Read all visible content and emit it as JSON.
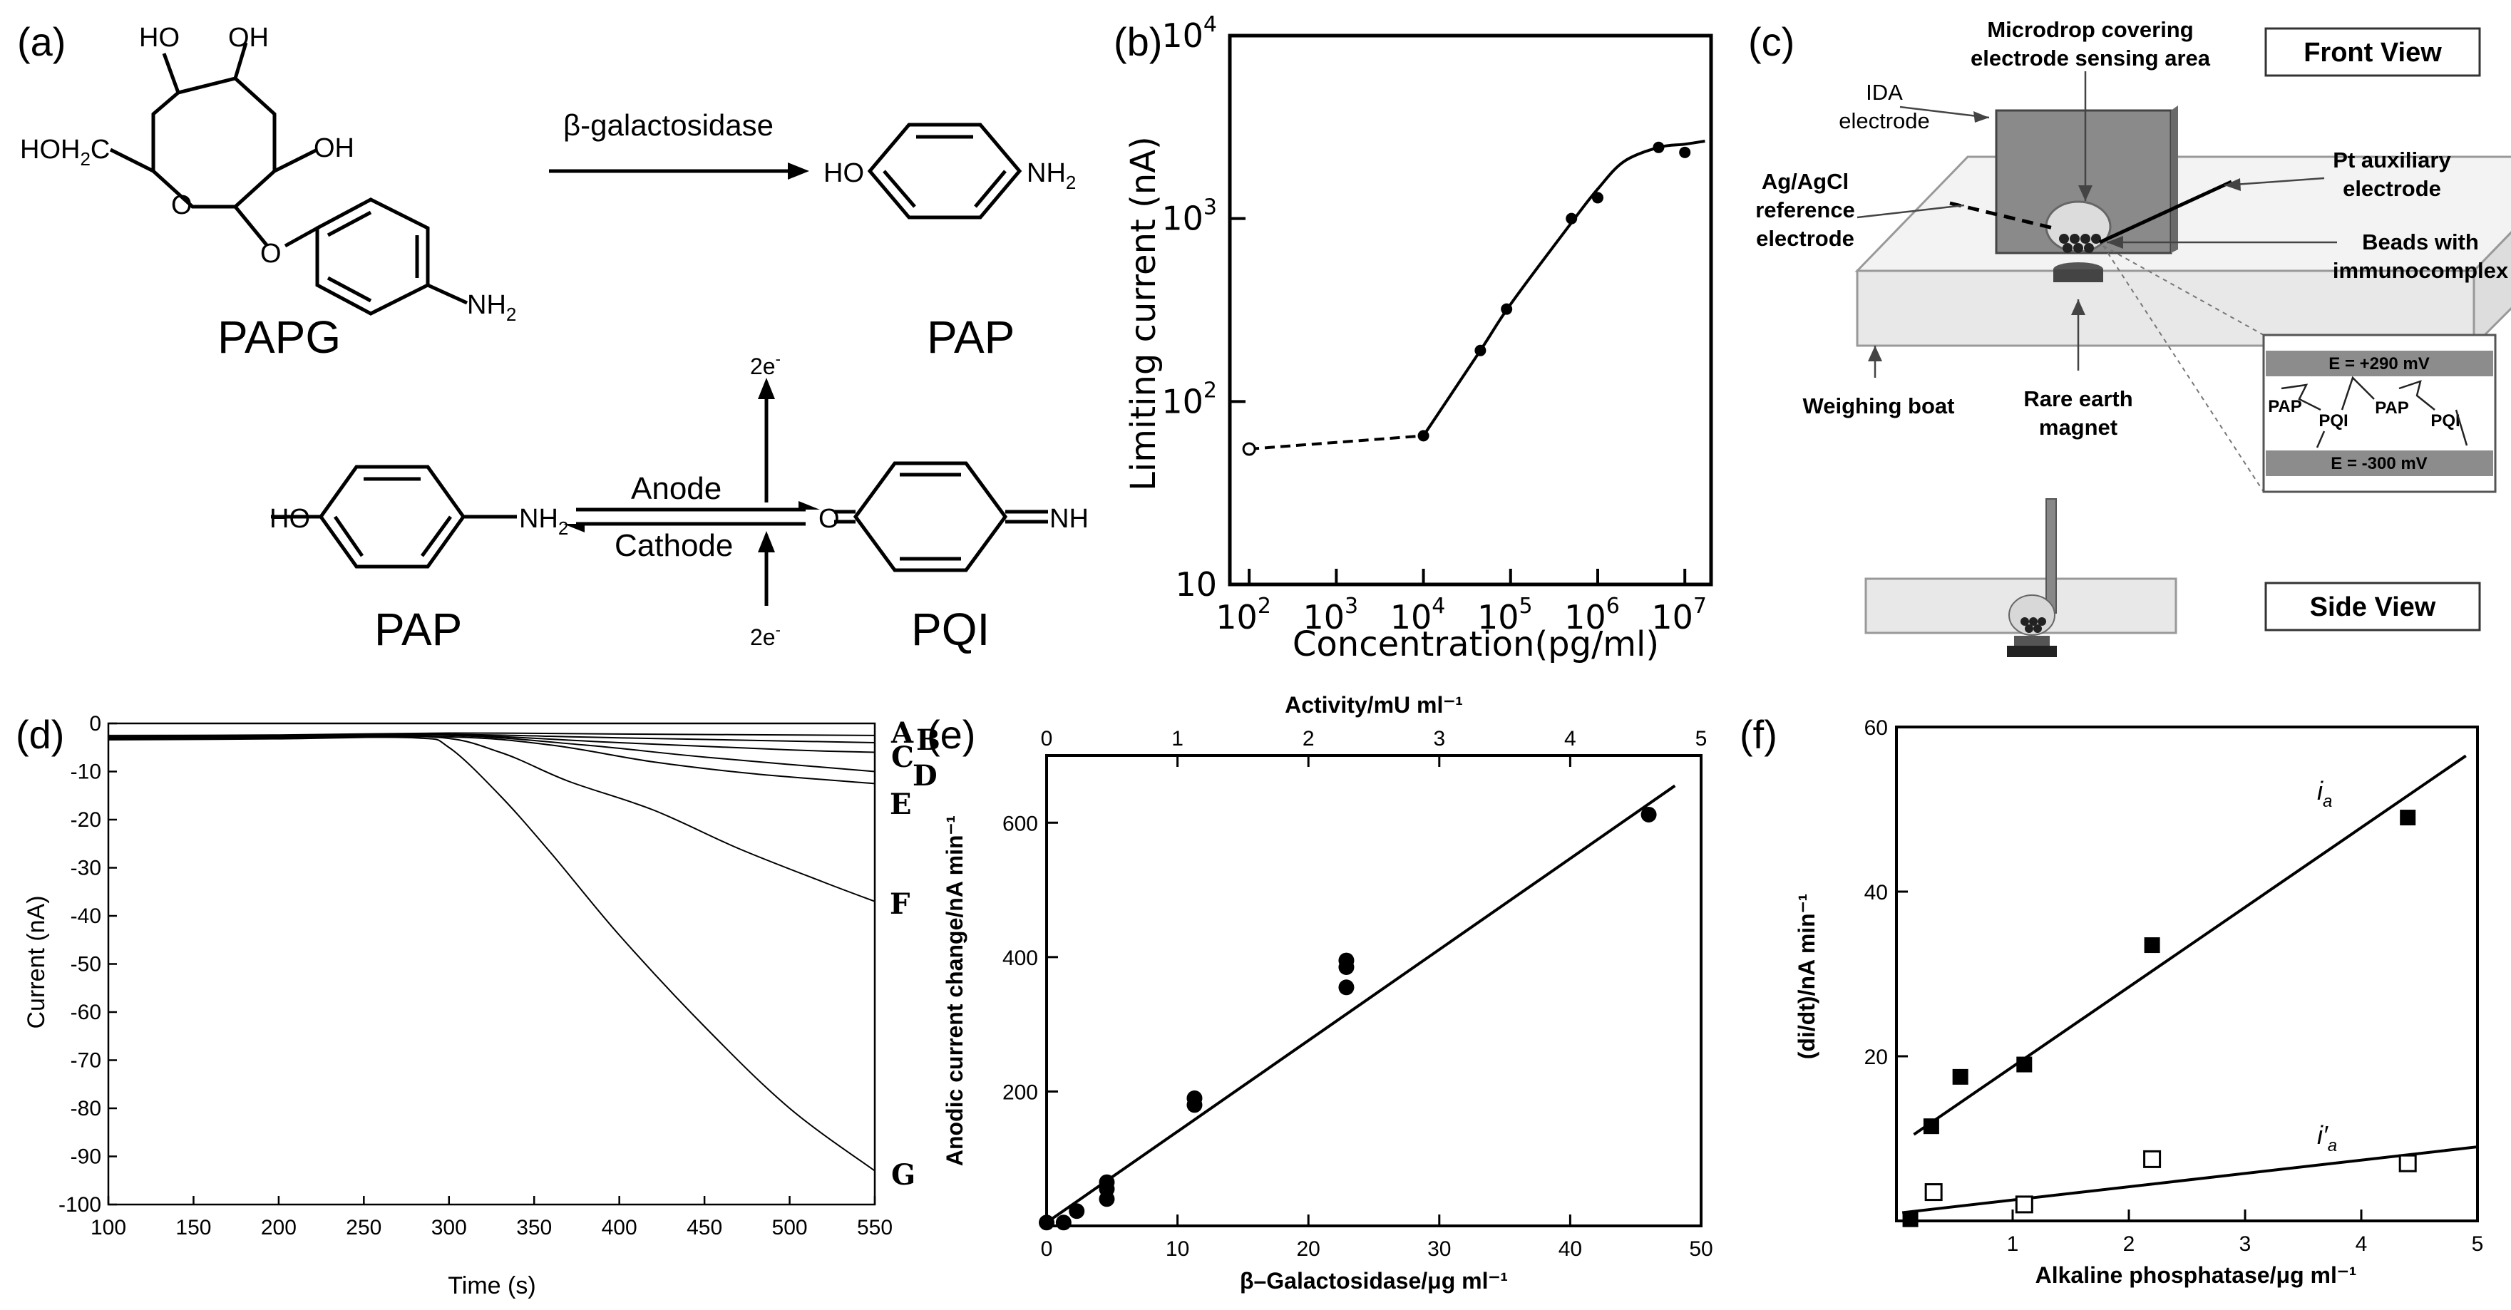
{
  "panels": {
    "a": {
      "letter": "(a)",
      "enzyme": "β-galactosidase",
      "papg_oh1": "HO",
      "papg_oh2": "OH",
      "papg_ch2": "HOH",
      "papg_ch2_sub": "2",
      "papg_ch2_c": "C",
      "papg_oh3": "OH",
      "papg_o1": "O",
      "papg_o2": "O",
      "papg_nh2": "NH",
      "papg_nh2_sub": "2",
      "papg_label": "PAPG",
      "pap1_ho": "HO",
      "pap1_nh2": "NH",
      "pap1_nh2_sub": "2",
      "pap1_label": "PAP",
      "pap2_ho": "HO",
      "pap2_nh2": "NH",
      "pap2_nh2_sub": "2",
      "pap2_label": "PAP",
      "anode": "Anode",
      "cathode": "Cathode",
      "electrons_top": "2e",
      "electrons_top_sup": "-",
      "electrons_bottom": "2e",
      "electrons_bottom_sup": "-",
      "pqi_o": "O",
      "pqi_nh": "NH",
      "pqi_label": "PQI"
    },
    "b": {
      "letter": "(b)",
      "y_ticks": [
        {
          "base": "10",
          "exp": "4"
        },
        {
          "base": "10",
          "exp": "3"
        },
        {
          "base": "10",
          "exp": "2"
        },
        {
          "base": "10",
          "exp": ""
        }
      ],
      "x_ticks": [
        {
          "base": "10",
          "exp": "2"
        },
        {
          "base": "10",
          "exp": "3"
        },
        {
          "base": "10",
          "exp": "4"
        },
        {
          "base": "10",
          "exp": "5"
        },
        {
          "base": "10",
          "exp": "6"
        },
        {
          "base": "10",
          "exp": "7"
        }
      ]
    },
    "c": {
      "letter": "(c)",
      "front_view": "Front View",
      "side_view": "Side View",
      "ida_line1": "IDA",
      "ida_line2": "electrode",
      "microdrop_line1": "Microdrop covering",
      "microdrop_line2": "electrode sensing area",
      "agcl_line1": "Ag/AgCl",
      "agcl_line2": "reference",
      "agcl_line3": "electrode",
      "pt_line1": "Pt auxiliary",
      "pt_line2": "electrode",
      "beads_line1": "Beads with",
      "beads_line2": "immunocomplex",
      "weighing_boat": "Weighing boat",
      "magnet_line1": "Rare earth",
      "magnet_line2": "magnet",
      "e_top": "E = +290 mV",
      "e_bottom": "E = -300 mV",
      "pap": "PAP",
      "pqi": "PQI"
    },
    "d": {
      "letter": "(d)"
    },
    "e": {
      "letter": "(e)"
    },
    "f": {
      "letter": "(f)"
    }
  },
  "chart_data": [
    {
      "id": "b",
      "type": "line",
      "xlabel": "Concentration(pg/ml)",
      "ylabel": "Limiting current (nA)",
      "x_scale": "log",
      "y_scale": "log",
      "xlim": [
        60,
        20000000
      ],
      "ylim": [
        10,
        10000
      ],
      "series": [
        {
          "points": [
            {
              "x": 100,
              "y": 55,
              "marker": "open"
            },
            {
              "x": 10000,
              "y": 65,
              "marker": "filled"
            },
            {
              "x": 45000,
              "y": 190,
              "marker": "filled"
            },
            {
              "x": 90000,
              "y": 320,
              "marker": "filled"
            },
            {
              "x": 500000,
              "y": 1000,
              "marker": "filled"
            },
            {
              "x": 1000000,
              "y": 1300,
              "marker": "filled"
            },
            {
              "x": 5000000,
              "y": 2450,
              "marker": "filled"
            },
            {
              "x": 10000000,
              "y": 2300,
              "marker": "filled"
            }
          ],
          "fit_dashed": [
            [
              100,
              55
            ],
            [
              10000,
              65
            ]
          ],
          "fit_solid": [
            [
              10000,
              65
            ],
            [
              45000,
              190
            ],
            [
              100000,
              340
            ],
            [
              500000,
              950
            ],
            [
              1000000,
              1450
            ],
            [
              2000000,
              2050
            ],
            [
              5000000,
              2450
            ],
            [
              10000000,
              2550
            ],
            [
              17000000,
              2650
            ]
          ]
        }
      ]
    },
    {
      "id": "d",
      "type": "line",
      "xlabel": "Time (s)",
      "ylabel": "Current (nA)",
      "xlim": [
        100,
        550
      ],
      "ylim": [
        -100,
        0
      ],
      "x_ticks": [
        100,
        150,
        200,
        250,
        300,
        350,
        400,
        450,
        500,
        550
      ],
      "y_ticks": [
        0,
        -10,
        -20,
        -30,
        -40,
        -50,
        -60,
        -70,
        -80,
        -90,
        -100
      ],
      "series": [
        {
          "name": "A",
          "points": [
            [
              100,
              -2.5
            ],
            [
              200,
              -2.4
            ],
            [
              300,
              -2.0
            ],
            [
              400,
              -2.2
            ],
            [
              550,
              -2.5
            ]
          ]
        },
        {
          "name": "B",
          "points": [
            [
              100,
              -2.8
            ],
            [
              200,
              -2.6
            ],
            [
              300,
              -2.3
            ],
            [
              400,
              -3.0
            ],
            [
              550,
              -4.0
            ]
          ]
        },
        {
          "name": "C",
          "points": [
            [
              100,
              -3.0
            ],
            [
              200,
              -2.8
            ],
            [
              300,
              -2.4
            ],
            [
              400,
              -4.0
            ],
            [
              500,
              -5.5
            ],
            [
              550,
              -6.0
            ]
          ]
        },
        {
          "name": "D",
          "points": [
            [
              100,
              -3.2
            ],
            [
              200,
              -3.0
            ],
            [
              300,
              -2.5
            ],
            [
              380,
              -4.5
            ],
            [
              450,
              -7.0
            ],
            [
              550,
              -10.0
            ]
          ]
        },
        {
          "name": "E",
          "points": [
            [
              100,
              -3.4
            ],
            [
              200,
              -3.2
            ],
            [
              300,
              -2.8
            ],
            [
              360,
              -4.5
            ],
            [
              420,
              -8.0
            ],
            [
              480,
              -10.5
            ],
            [
              550,
              -12.5
            ]
          ]
        },
        {
          "name": "F",
          "points": [
            [
              100,
              -3.0
            ],
            [
              200,
              -3.0
            ],
            [
              290,
              -2.8
            ],
            [
              330,
              -6.0
            ],
            [
              370,
              -12.0
            ],
            [
              420,
              -18.0
            ],
            [
              470,
              -26.0
            ],
            [
              520,
              -33.0
            ],
            [
              550,
              -37.0
            ]
          ]
        },
        {
          "name": "G",
          "points": [
            [
              100,
              -3.0
            ],
            [
              200,
              -3.0
            ],
            [
              280,
              -3.0
            ],
            [
              300,
              -5.0
            ],
            [
              330,
              -15.0
            ],
            [
              360,
              -27.0
            ],
            [
              400,
              -44.0
            ],
            [
              450,
              -63.0
            ],
            [
              500,
              -80.0
            ],
            [
              550,
              -93.0
            ]
          ]
        }
      ]
    },
    {
      "id": "e",
      "type": "scatter",
      "xlabel": "β–Galactosidase/μg ml⁻¹",
      "x2label": "Activity/mU ml⁻¹",
      "ylabel": "Anodic current change/nA min⁻¹",
      "xlim": [
        0,
        50
      ],
      "x2lim": [
        0,
        5
      ],
      "ylim": [
        0,
        700
      ],
      "x_ticks": [
        0,
        10,
        20,
        30,
        40,
        50
      ],
      "x2_ticks": [
        0,
        1,
        2,
        3,
        4,
        5
      ],
      "y_ticks": [
        0,
        200,
        400,
        600
      ],
      "y_tick_labels": [
        "",
        "200",
        "400",
        "600"
      ],
      "points": [
        [
          0.0,
          5
        ],
        [
          1.3,
          5
        ],
        [
          2.3,
          22
        ],
        [
          4.6,
          40
        ],
        [
          4.6,
          55
        ],
        [
          4.6,
          65
        ],
        [
          11.3,
          180
        ],
        [
          11.3,
          190
        ],
        [
          22.9,
          355
        ],
        [
          22.9,
          385
        ],
        [
          22.9,
          395
        ],
        [
          46,
          612
        ]
      ],
      "fit": [
        [
          0.0,
          5
        ],
        [
          48,
          655
        ]
      ]
    },
    {
      "id": "f",
      "type": "scatter",
      "xlabel": "Alkaline phosphatase/μg ml⁻¹",
      "ylabel": "(di/dt)/nA min⁻¹",
      "xlim": [
        0,
        5
      ],
      "ylim": [
        0,
        60
      ],
      "x_ticks": [
        0,
        1,
        2,
        3,
        4,
        5
      ],
      "x_tick_labels": [
        "",
        "1",
        "2",
        "3",
        "4",
        "5"
      ],
      "y_ticks": [
        0,
        20,
        40,
        60
      ],
      "y_tick_labels": [
        "",
        "20",
        "40",
        "60"
      ],
      "series": [
        {
          "name": "i",
          "name_sub": "a",
          "marker": "filled-square",
          "points": [
            [
              0.12,
              0.2
            ],
            [
              0.3,
              11.5
            ],
            [
              0.55,
              17.5
            ],
            [
              1.1,
              19.0
            ],
            [
              2.2,
              33.5
            ],
            [
              4.4,
              49.0
            ]
          ],
          "fit": [
            [
              0.15,
              10.5
            ],
            [
              4.9,
              56.5
            ]
          ]
        },
        {
          "name": "i′",
          "name_sub": "a",
          "marker": "open-square",
          "points": [
            [
              0.32,
              3.5
            ],
            [
              1.1,
              2.0
            ],
            [
              2.2,
              7.5
            ],
            [
              4.4,
              7.0
            ]
          ],
          "fit": [
            [
              0.05,
              1.0
            ],
            [
              5.0,
              9.0
            ]
          ]
        }
      ]
    }
  ]
}
